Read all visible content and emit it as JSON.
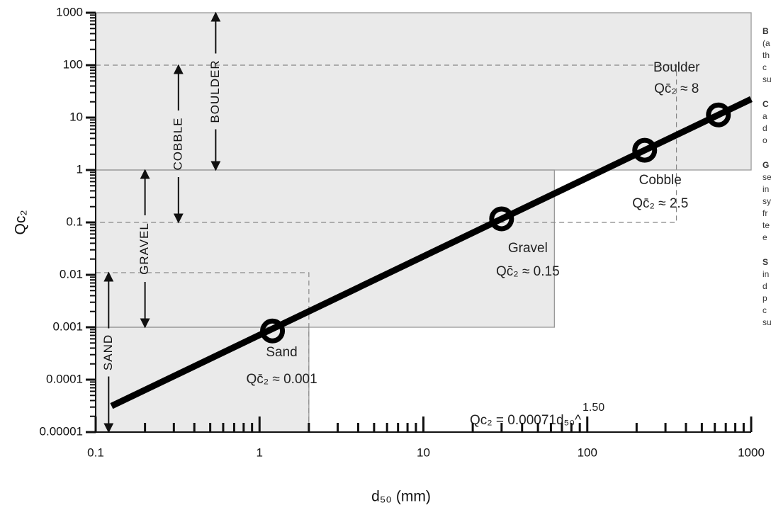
{
  "chart_data": {
    "type": "line",
    "xlabel": "d₅₀ (mm)",
    "ylabel": "Qc₂",
    "log_x": true,
    "log_y": true,
    "xlim": [
      0.1,
      1000
    ],
    "ylim": [
      1e-05,
      1000
    ],
    "xticks": [
      0.1,
      1,
      10,
      100,
      1000
    ],
    "yticks": [
      1e-05,
      0.0001,
      0.001,
      0.01,
      0.1,
      1,
      10,
      100,
      1000
    ],
    "xminor": [
      0.2,
      0.3,
      0.4,
      0.5,
      0.6,
      0.7,
      0.8,
      0.9,
      2,
      3,
      4,
      5,
      6,
      7,
      8,
      9,
      20,
      30,
      40,
      50,
      60,
      70,
      80,
      90,
      200,
      300,
      400,
      500,
      600,
      700,
      800,
      900
    ],
    "yminor": [
      2e-05,
      3e-05,
      4e-05,
      5e-05,
      6e-05,
      7e-05,
      8e-05,
      9e-05,
      0.0002,
      0.0003,
      0.0004,
      0.0005,
      0.0006,
      0.0007,
      0.0008,
      0.0009,
      0.002,
      0.003,
      0.004,
      0.005,
      0.006,
      0.007,
      0.008,
      0.009,
      0.02,
      0.03,
      0.04,
      0.05,
      0.06,
      0.07,
      0.08,
      0.09,
      0.2,
      0.3,
      0.4,
      0.5,
      0.6,
      0.7,
      0.8,
      0.9,
      2,
      3,
      4,
      5,
      6,
      7,
      8,
      9,
      20,
      30,
      40,
      50,
      60,
      70,
      80,
      90,
      200,
      300,
      400,
      500,
      600,
      700,
      800,
      900
    ],
    "line": {
      "color": "#000000",
      "x": [
        0.125,
        1000
      ],
      "values": [
        3.14e-05,
        22.5
      ]
    },
    "points": {
      "color": "#000000",
      "x": [
        1.2,
        30,
        224,
        631
      ],
      "values": [
        0.00085,
        0.117,
        2.38,
        11.25
      ],
      "labels": [
        "Sand",
        "Gravel",
        "Cobble",
        "Boulder"
      ],
      "annotations": [
        "Qc̄₂ ≈ 0.001",
        "Qc̄₂ ≈ 0.15",
        "Qc̄₂ ≈ 2.5",
        "Qc̄₂ ≈ 8"
      ]
    },
    "regions": [
      {
        "x": [
          0.1,
          1000
        ],
        "y": [
          1,
          1000
        ],
        "style": "solid"
      },
      {
        "x": [
          0.1,
          63
        ],
        "y": [
          0.001,
          1
        ],
        "style": "solid"
      },
      {
        "x": [
          0.1,
          2
        ],
        "y": [
          1e-05,
          0.001
        ],
        "style": "solid"
      },
      {
        "x": [
          0.1,
          350
        ],
        "y": [
          0.1,
          100
        ],
        "style": "dashed"
      },
      {
        "x": [
          0.1,
          2
        ],
        "y": [
          1e-05,
          0.011
        ],
        "style": "dashed"
      }
    ],
    "size_classes": [
      {
        "label": "SAND",
        "x": 0.12,
        "range": [
          1e-05,
          0.011
        ]
      },
      {
        "label": "GRAVEL",
        "x": 0.2,
        "range": [
          0.001,
          1
        ]
      },
      {
        "label": "COBBLE",
        "x": 0.32,
        "range": [
          0.1,
          100
        ]
      },
      {
        "label": "BOULDER",
        "x": 0.54,
        "range": [
          1,
          1000
        ]
      }
    ],
    "equation": "Qc₂ = 0.00071d₅₀^",
    "equation_exponent": "1.50",
    "side_text": [
      "B",
      "(a",
      "th",
      "c",
      "su",
      "C",
      "a",
      "d",
      "o",
      "G",
      "se",
      "in",
      "sy",
      "fr",
      "te",
      "e",
      "S",
      "in",
      "d",
      "p",
      "c",
      "su"
    ]
  }
}
